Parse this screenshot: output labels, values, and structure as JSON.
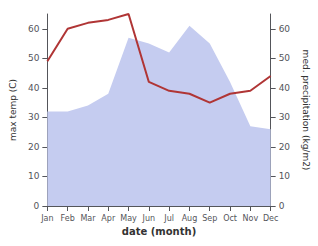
{
  "chart_data": {
    "type": "line",
    "categories": [
      "Jan",
      "Feb",
      "Mar",
      "Apr",
      "May",
      "Jun",
      "Jul",
      "Aug",
      "Sep",
      "Oct",
      "Nov",
      "Dec"
    ],
    "series": [
      {
        "type": "area",
        "color": "#c5ccf0",
        "axis": "y2",
        "values": [
          32,
          32,
          34,
          38,
          57,
          55,
          52,
          61,
          55,
          42,
          27,
          26
        ]
      },
      {
        "type": "line",
        "color": "#b03535",
        "values": [
          49,
          60,
          62,
          63,
          65,
          42,
          39,
          38,
          35,
          38,
          39,
          44
        ]
      }
    ],
    "xlabel": "date (month)",
    "ylabel": "max temp (C)",
    "y2label": "med. precipitation (kg/m2)",
    "ylim": [
      0,
      65
    ],
    "yticks": [
      0,
      10,
      20,
      30,
      40,
      50,
      60
    ],
    "y2lim": [
      0,
      65
    ],
    "y2ticks": [
      0,
      10,
      20,
      30,
      40,
      50,
      60
    ],
    "grid": false
  }
}
